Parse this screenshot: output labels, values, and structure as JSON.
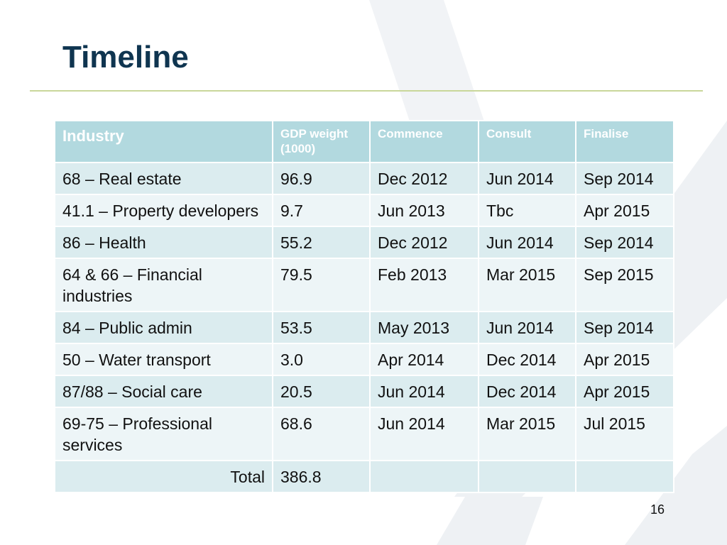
{
  "slide": {
    "title": "Timeline",
    "page_number": "16"
  },
  "table": {
    "headers": [
      "Industry",
      "GDP weight (1000)",
      "Commence",
      "Consult",
      "Finalise"
    ],
    "rows": [
      [
        "68 – Real estate",
        "96.9",
        "Dec 2012",
        "Jun 2014",
        "Sep 2014"
      ],
      [
        "41.1 – Property developers",
        "9.7",
        "Jun 2013",
        "Tbc",
        "Apr 2015"
      ],
      [
        "86 – Health",
        "55.2",
        "Dec 2012",
        "Jun 2014",
        "Sep 2014"
      ],
      [
        "64 & 66 – Financial industries",
        "79.5",
        "Feb 2013",
        "Mar 2015",
        "Sep 2015"
      ],
      [
        "84 – Public admin",
        "53.5",
        "May 2013",
        "Jun 2014",
        "Sep 2014"
      ],
      [
        "50 – Water transport",
        "3.0",
        "Apr 2014",
        "Dec 2014",
        "Apr 2015"
      ],
      [
        "87/88 – Social care",
        "20.5",
        "Jun 2014",
        "Dec 2014",
        "Apr 2015"
      ],
      [
        "69-75 – Professional services",
        "68.6",
        "Jun 2014",
        "Mar 2015",
        "Jul 2015"
      ]
    ],
    "total": {
      "label": "Total",
      "value": "386.8"
    }
  },
  "colors": {
    "title": "#0f3550",
    "header_bg": "#b2d9df",
    "row_odd_bg": "#dbecef",
    "row_even_bg": "#edf5f7",
    "rule": "#c9d79a"
  }
}
